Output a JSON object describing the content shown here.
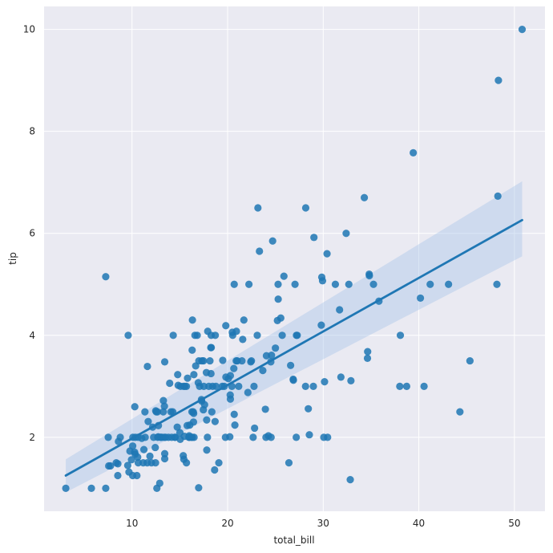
{
  "chart_data": {
    "type": "scatter",
    "title": "",
    "xlabel": "total_bill",
    "ylabel": "tip",
    "xlim": [
      0.8,
      53.2
    ],
    "ylim": [
      0.55,
      10.45
    ],
    "xticks": [
      10,
      20,
      30,
      40,
      50
    ],
    "yticks": [
      2,
      4,
      6,
      8,
      10
    ],
    "grid": true,
    "background": "#EAEAF2",
    "grid_color": "#FFFFFF",
    "point_color": "#1F77B4",
    "line_color": "#1F77B4",
    "band_color": "#AEC7E8",
    "regression": {
      "x": [
        3.07,
        50.81
      ],
      "y": [
        1.25,
        6.26
      ],
      "ci_upper": [
        1.57,
        7.02
      ],
      "ci_lower": [
        0.92,
        5.55
      ]
    },
    "points": [
      [
        3.07,
        1.0
      ],
      [
        5.75,
        1.0
      ],
      [
        7.25,
        1.0
      ],
      [
        7.51,
        2.0
      ],
      [
        7.56,
        1.44
      ],
      [
        7.74,
        1.44
      ],
      [
        7.25,
        5.15
      ],
      [
        8.35,
        1.5
      ],
      [
        8.51,
        1.25
      ],
      [
        8.52,
        1.48
      ],
      [
        8.58,
        1.92
      ],
      [
        8.77,
        2.0
      ],
      [
        9.55,
        1.45
      ],
      [
        9.6,
        4.0
      ],
      [
        9.68,
        1.32
      ],
      [
        9.78,
        1.73
      ],
      [
        9.94,
        1.56
      ],
      [
        10.07,
        1.25
      ],
      [
        10.07,
        1.83
      ],
      [
        10.09,
        2.0
      ],
      [
        10.27,
        1.71
      ],
      [
        10.29,
        2.6
      ],
      [
        10.33,
        1.67
      ],
      [
        10.34,
        2.0
      ],
      [
        10.51,
        1.25
      ],
      [
        10.59,
        1.61
      ],
      [
        10.63,
        2.0
      ],
      [
        10.65,
        1.5
      ],
      [
        11.02,
        1.98
      ],
      [
        11.17,
        1.5
      ],
      [
        11.24,
        1.76
      ],
      [
        11.35,
        2.5
      ],
      [
        11.38,
        2.0
      ],
      [
        11.59,
        1.5
      ],
      [
        11.61,
        3.39
      ],
      [
        11.69,
        2.31
      ],
      [
        11.87,
        1.63
      ],
      [
        12.03,
        1.5
      ],
      [
        12.16,
        2.2
      ],
      [
        12.26,
        2.0
      ],
      [
        12.43,
        1.8
      ],
      [
        12.46,
        1.5
      ],
      [
        12.48,
        2.52
      ],
      [
        12.54,
        2.5
      ],
      [
        12.6,
        1.0
      ],
      [
        12.66,
        2.5
      ],
      [
        12.69,
        2.0
      ],
      [
        12.74,
        2.01
      ],
      [
        12.76,
        2.23
      ],
      [
        12.9,
        1.1
      ],
      [
        13.0,
        2.0
      ],
      [
        13.03,
        2.0
      ],
      [
        13.13,
        2.0
      ],
      [
        13.27,
        2.5
      ],
      [
        13.28,
        2.72
      ],
      [
        13.37,
        2.0
      ],
      [
        13.39,
        2.61
      ],
      [
        13.42,
        1.58
      ],
      [
        13.42,
        3.48
      ],
      [
        13.42,
        1.68
      ],
      [
        13.51,
        2.0
      ],
      [
        13.81,
        2.0
      ],
      [
        13.94,
        3.06
      ],
      [
        14.07,
        2.5
      ],
      [
        14.15,
        2.0
      ],
      [
        14.26,
        2.5
      ],
      [
        14.31,
        4.0
      ],
      [
        14.48,
        2.0
      ],
      [
        14.52,
        2.0
      ],
      [
        14.73,
        2.2
      ],
      [
        14.78,
        3.23
      ],
      [
        14.83,
        3.02
      ],
      [
        15.01,
        2.09
      ],
      [
        15.04,
        1.96
      ],
      [
        15.06,
        3.0
      ],
      [
        15.36,
        1.64
      ],
      [
        15.38,
        3.0
      ],
      [
        15.42,
        1.57
      ],
      [
        15.48,
        2.02
      ],
      [
        15.53,
        3.0
      ],
      [
        15.69,
        1.5
      ],
      [
        15.69,
        3.0
      ],
      [
        15.77,
        2.23
      ],
      [
        15.81,
        3.16
      ],
      [
        15.95,
        2.0
      ],
      [
        15.98,
        2.03
      ],
      [
        16.0,
        2.0
      ],
      [
        16.04,
        2.24
      ],
      [
        16.21,
        2.0
      ],
      [
        16.27,
        2.5
      ],
      [
        16.29,
        3.71
      ],
      [
        16.31,
        2.0
      ],
      [
        16.32,
        4.3
      ],
      [
        16.4,
        2.5
      ],
      [
        16.43,
        2.3
      ],
      [
        16.45,
        2.47
      ],
      [
        16.47,
        3.23
      ],
      [
        16.49,
        2.0
      ],
      [
        16.58,
        4.0
      ],
      [
        16.66,
        3.4
      ],
      [
        16.82,
        4.0
      ],
      [
        16.93,
        3.07
      ],
      [
        16.97,
        1.01
      ],
      [
        16.99,
        3.5
      ],
      [
        17.07,
        3.0
      ],
      [
        17.26,
        2.74
      ],
      [
        17.29,
        2.71
      ],
      [
        17.31,
        3.5
      ],
      [
        17.46,
        2.54
      ],
      [
        17.47,
        3.5
      ],
      [
        17.51,
        3.0
      ],
      [
        17.59,
        2.64
      ],
      [
        17.78,
        3.27
      ],
      [
        17.81,
        2.34
      ],
      [
        17.82,
        1.75
      ],
      [
        17.89,
        2.0
      ],
      [
        17.92,
        4.08
      ],
      [
        18.04,
        3.0
      ],
      [
        18.15,
        3.5
      ],
      [
        18.24,
        3.76
      ],
      [
        18.26,
        3.25
      ],
      [
        18.28,
        4.0
      ],
      [
        18.29,
        3.76
      ],
      [
        18.35,
        2.5
      ],
      [
        18.43,
        3.0
      ],
      [
        18.64,
        1.36
      ],
      [
        18.69,
        2.31
      ],
      [
        18.71,
        4.0
      ],
      [
        18.78,
        3.0
      ],
      [
        19.08,
        1.5
      ],
      [
        19.44,
        3.0
      ],
      [
        19.49,
        3.51
      ],
      [
        19.65,
        3.0
      ],
      [
        19.77,
        2.0
      ],
      [
        19.81,
        4.19
      ],
      [
        19.82,
        3.18
      ],
      [
        20.08,
        3.15
      ],
      [
        20.23,
        2.01
      ],
      [
        20.27,
        2.83
      ],
      [
        20.29,
        2.75
      ],
      [
        20.29,
        3.21
      ],
      [
        20.45,
        3.0
      ],
      [
        20.49,
        4.06
      ],
      [
        20.53,
        4.0
      ],
      [
        20.65,
        3.35
      ],
      [
        20.69,
        2.45
      ],
      [
        20.69,
        5.0
      ],
      [
        20.76,
        2.24
      ],
      [
        20.9,
        3.5
      ],
      [
        20.92,
        4.08
      ],
      [
        21.01,
        3.5
      ],
      [
        21.16,
        3.0
      ],
      [
        21.5,
        3.5
      ],
      [
        21.58,
        3.92
      ],
      [
        21.7,
        4.3
      ],
      [
        22.12,
        2.88
      ],
      [
        22.23,
        5.0
      ],
      [
        22.42,
        3.48
      ],
      [
        22.49,
        3.5
      ],
      [
        22.67,
        2.0
      ],
      [
        22.76,
        3.0
      ],
      [
        22.82,
        2.18
      ],
      [
        23.1,
        4.0
      ],
      [
        23.17,
        6.5
      ],
      [
        23.33,
        5.65
      ],
      [
        23.68,
        3.31
      ],
      [
        23.95,
        2.55
      ],
      [
        24.01,
        2.0
      ],
      [
        24.06,
        3.6
      ],
      [
        24.27,
        2.03
      ],
      [
        24.52,
        3.48
      ],
      [
        24.55,
        2.0
      ],
      [
        24.59,
        3.61
      ],
      [
        24.71,
        5.85
      ],
      [
        25.0,
        3.75
      ],
      [
        25.21,
        4.29
      ],
      [
        25.28,
        5.0
      ],
      [
        25.29,
        4.71
      ],
      [
        25.56,
        4.34
      ],
      [
        25.71,
        4.0
      ],
      [
        25.89,
        5.16
      ],
      [
        26.41,
        1.5
      ],
      [
        26.59,
        3.41
      ],
      [
        26.86,
        3.14
      ],
      [
        26.88,
        3.12
      ],
      [
        27.05,
        5.0
      ],
      [
        27.18,
        2.0
      ],
      [
        27.2,
        4.0
      ],
      [
        27.28,
        4.0
      ],
      [
        28.15,
        3.0
      ],
      [
        28.17,
        6.5
      ],
      [
        28.44,
        2.56
      ],
      [
        28.55,
        2.05
      ],
      [
        28.97,
        3.0
      ],
      [
        29.03,
        5.92
      ],
      [
        29.8,
        4.2
      ],
      [
        29.85,
        5.14
      ],
      [
        29.93,
        5.07
      ],
      [
        30.06,
        2.0
      ],
      [
        30.14,
        3.09
      ],
      [
        30.4,
        5.6
      ],
      [
        30.46,
        2.0
      ],
      [
        31.27,
        5.0
      ],
      [
        31.71,
        4.5
      ],
      [
        31.85,
        3.18
      ],
      [
        32.4,
        6.0
      ],
      [
        32.68,
        5.0
      ],
      [
        32.83,
        1.17
      ],
      [
        32.9,
        3.11
      ],
      [
        34.3,
        6.7
      ],
      [
        34.63,
        3.55
      ],
      [
        34.65,
        3.68
      ],
      [
        34.81,
        5.2
      ],
      [
        34.83,
        5.17
      ],
      [
        35.26,
        5.0
      ],
      [
        35.83,
        4.67
      ],
      [
        38.01,
        3.0
      ],
      [
        38.07,
        4.0
      ],
      [
        38.73,
        3.0
      ],
      [
        39.42,
        7.58
      ],
      [
        40.17,
        4.73
      ],
      [
        40.55,
        3.0
      ],
      [
        41.19,
        5.0
      ],
      [
        43.11,
        5.0
      ],
      [
        44.3,
        2.5
      ],
      [
        45.35,
        3.5
      ],
      [
        48.17,
        5.0
      ],
      [
        48.27,
        6.73
      ],
      [
        48.33,
        9.0
      ],
      [
        50.81,
        10.0
      ]
    ]
  }
}
